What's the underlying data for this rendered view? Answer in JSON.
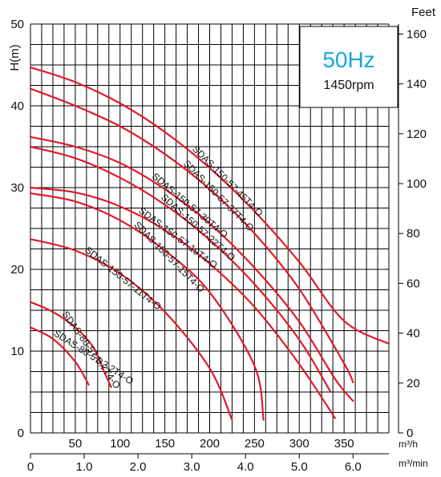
{
  "chart_data": {
    "type": "line",
    "title": "50Hz",
    "subtitle": "1450rpm",
    "title_color": "#1aa6dc",
    "curve_color": "#e21b2a",
    "ylabel": "H(m)",
    "y2label": "Feet",
    "x_unit": "m³/h",
    "x2_unit": "m³/min",
    "xlim": [
      0,
      400
    ],
    "ylim": [
      0,
      50
    ],
    "y2lim": [
      0,
      164
    ],
    "grid": true,
    "x_ticks": [
      50,
      100,
      150,
      200,
      250,
      300,
      350
    ],
    "x2_ticks": [
      "0",
      "1.0",
      "2.0",
      "3.0",
      "4.0",
      "5.0",
      "6.0"
    ],
    "x2_tick_values": [
      0,
      1,
      2,
      3,
      4,
      5,
      6
    ],
    "y_ticks": [
      0,
      10,
      20,
      30,
      40,
      50
    ],
    "y2_ticks": [
      0,
      20,
      40,
      60,
      80,
      100,
      120,
      140,
      160
    ],
    "series": [
      {
        "name": "SDAS-150-57-45T4-O",
        "x": [
          0,
          50,
          100,
          150,
          200,
          250,
          300,
          350,
          400
        ],
        "y": [
          44.7,
          42.9,
          40.3,
          36.8,
          32.4,
          27.1,
          20.9,
          13.7,
          10.9
        ]
      },
      {
        "name": "SDAS-150-57-37T4-O",
        "x": [
          0,
          50,
          100,
          150,
          200,
          250,
          300,
          350,
          360
        ],
        "y": [
          42.1,
          40.0,
          37.5,
          34.1,
          29.8,
          24.4,
          17.6,
          8.5,
          6.2
        ]
      },
      {
        "name": "SDAS-150-57-30T4-O",
        "x": [
          0,
          50,
          100,
          150,
          200,
          250,
          300,
          340,
          360
        ],
        "y": [
          36.2,
          35.0,
          33.0,
          29.8,
          25.6,
          20.2,
          13.6,
          6.6,
          3.9
        ]
      },
      {
        "name": "SDAS-150-57-22T4-O",
        "x": [
          0,
          50,
          100,
          150,
          200,
          250,
          300,
          335
        ],
        "y": [
          35.0,
          33.6,
          31.2,
          27.9,
          23.6,
          18.2,
          11.4,
          5.0
        ]
      },
      {
        "name": "SDAS-150-57-19T4-O",
        "x": [
          0,
          50,
          100,
          150,
          200,
          250,
          300,
          340
        ],
        "y": [
          30.0,
          29.4,
          27.7,
          24.8,
          20.7,
          15.4,
          8.4,
          1.8
        ]
      },
      {
        "name": "SDAS-150-57-15T4-O",
        "x": [
          0,
          50,
          100,
          150,
          200,
          250,
          260
        ],
        "y": [
          29.3,
          28.3,
          26.0,
          22.3,
          17.2,
          8.2,
          1.6
        ]
      },
      {
        "name": "SDAS-150-57-11T4-O",
        "x": [
          0,
          50,
          100,
          150,
          200,
          225
        ],
        "y": [
          23.7,
          22.3,
          19.5,
          14.8,
          7.9,
          1.6
        ]
      },
      {
        "name": "SDAS-80-57-3.7T4-O",
        "x": [
          0,
          25,
          50,
          70,
          81,
          90
        ],
        "y": [
          16.0,
          14.8,
          12.9,
          10.5,
          7.8,
          5.6
        ]
      },
      {
        "name": "SDAS-80-57-2.2T4-O",
        "x": [
          0,
          25,
          50,
          65
        ],
        "y": [
          12.9,
          11.5,
          8.7,
          5.9
        ]
      }
    ]
  }
}
